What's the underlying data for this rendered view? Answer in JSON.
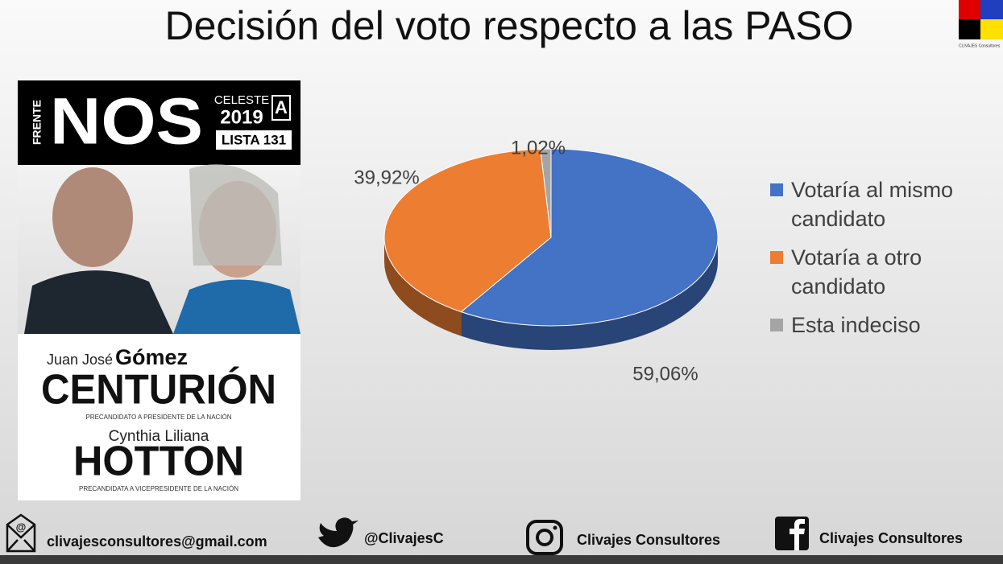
{
  "chart_data": {
    "type": "pie3d",
    "title": "Decisión del voto respecto a las PASO",
    "categories": [
      "Votaría al mismo candidato",
      "Votaría a otro candidato",
      "Esta indeciso"
    ],
    "values": [
      59.06,
      39.92,
      1.02
    ],
    "value_labels": [
      "59,06%",
      "39,92%",
      "1,02%"
    ],
    "colors": [
      "#4472c4",
      "#ed7d31",
      "#a5a5a5"
    ],
    "legend": "right"
  },
  "logo": {
    "text": "CLIVAJES Consultores"
  },
  "poster": {
    "frente": "FRENTE",
    "brand": "NOS",
    "celeste": "CELESTE",
    "year": "2019",
    "letter": "A",
    "list": "LISTA 131",
    "candidate1_first": "Juan José",
    "candidate1_middle": "Gómez",
    "candidate1_last": "CENTURIÓN",
    "candidate1_role": "PRECANDIDATO A PRESIDENTE DE LA NACIÓN",
    "candidate2_first": "Cynthia Liliana",
    "candidate2_last": "HOTTON",
    "candidate2_role": "PRECANDIDATA A VICEPRESIDENTE DE LA NACIÓN"
  },
  "footer": {
    "email": "clivajesconsultores@gmail.com",
    "twitter": "@ClivajesC",
    "instagram": "Clivajes Consultores",
    "facebook": "Clivajes Consultores"
  }
}
